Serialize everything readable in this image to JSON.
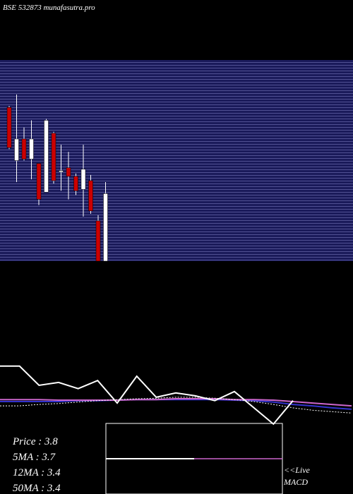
{
  "header": {
    "title": "BSE 532873 munafasutra.pro"
  },
  "chart_data": [
    {
      "type": "candlestick",
      "categories": [
        null,
        null,
        null,
        null,
        null,
        null,
        null,
        null,
        null,
        null,
        null,
        null,
        null,
        null
      ],
      "open": [
        4.07,
        3.7,
        3.85,
        3.71,
        3.68,
        3.48,
        3.89,
        3.62,
        3.65,
        3.59,
        3.5,
        3.56,
        3.28,
        3.0
      ],
      "high": [
        4.08,
        4.16,
        3.93,
        3.98,
        3.68,
        3.99,
        3.9,
        3.81,
        3.76,
        3.61,
        3.81,
        3.6,
        3.32,
        3.55
      ],
      "low": [
        3.78,
        3.55,
        3.7,
        3.57,
        3.39,
        3.48,
        3.54,
        3.49,
        3.43,
        3.46,
        3.31,
        3.33,
        3.0,
        3.0
      ],
      "close": [
        3.79,
        3.85,
        3.71,
        3.85,
        3.43,
        3.98,
        3.56,
        3.63,
        3.59,
        3.49,
        3.64,
        3.35,
        3.0,
        3.47
      ],
      "up_color": "#ffffff",
      "down_color": "#cc0000",
      "ylim": [
        3.0,
        4.4
      ]
    },
    {
      "type": "line",
      "categories": [
        null,
        null,
        null,
        null,
        null,
        null,
        null,
        null,
        null,
        null,
        null,
        null,
        null,
        null,
        null,
        null,
        null,
        null,
        null
      ],
      "series": [
        {
          "color": "#3333cc",
          "dash": false,
          "values": [
            3.53,
            3.53,
            3.53,
            3.53,
            3.55,
            3.55,
            3.56,
            3.57,
            3.57,
            3.57,
            3.57,
            3.57,
            3.56,
            3.55,
            3.52,
            3.47,
            3.44,
            3.4,
            3.37
          ]
        },
        {
          "color": "#cc66cc",
          "dash": false,
          "values": [
            3.57,
            3.57,
            3.57,
            3.56,
            3.56,
            3.56,
            3.56,
            3.57,
            3.57,
            3.59,
            3.59,
            3.59,
            3.57,
            3.57,
            3.56,
            3.53,
            3.5,
            3.47,
            3.44
          ]
        },
        {
          "color": "#ffffff",
          "dash": true,
          "values": [
            3.44,
            3.44,
            3.47,
            3.49,
            3.52,
            3.55,
            3.57,
            3.59,
            3.6,
            3.62,
            3.62,
            3.6,
            3.57,
            3.53,
            3.47,
            3.4,
            3.35,
            3.32,
            3.29
          ]
        },
        {
          "color": "#ffffff",
          "dash": false,
          "values": [
            4.27,
            4.27,
            3.87,
            3.93,
            3.8,
            3.97,
            3.5,
            4.06,
            3.62,
            3.71,
            3.65,
            3.55,
            3.74,
            3.4,
            3.06,
            3.55,
            null,
            null,
            null
          ]
        }
      ],
      "ylim": [
        3.0,
        4.4
      ]
    }
  ],
  "stats": [
    "Price   : 3.8",
    "5MA : 3.7",
    "12MA : 3.4",
    "50MA : 3.4"
  ],
  "macd": {
    "label": [
      "<<Live",
      "MACD"
    ]
  }
}
